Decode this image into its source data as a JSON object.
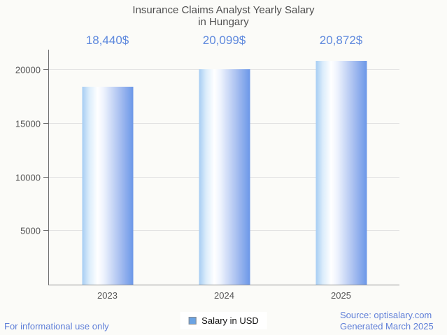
{
  "title": {
    "line1": "Insurance Claims Analyst Yearly Salary",
    "line2": "in Hungary"
  },
  "chart_data": {
    "type": "bar",
    "title": "Insurance Claims Analyst Yearly Salary in Hungary",
    "categories": [
      "2023",
      "2024",
      "2025"
    ],
    "series": [
      {
        "name": "Salary in USD",
        "values": [
          18440,
          20099,
          20872
        ]
      }
    ],
    "value_labels": [
      "18,440$",
      "20,099$",
      "20,872$"
    ],
    "xlabel": "",
    "ylabel": "",
    "yticks": [
      5000,
      10000,
      15000,
      20000
    ],
    "ylim": [
      0,
      21900
    ],
    "grid": true,
    "legend_position": "bottom"
  },
  "legend": {
    "label": "Salary in USD",
    "swatch_color": "#6ba3e3"
  },
  "footer": {
    "left": "For informational use only",
    "source": "Source: optisalary.com",
    "generated": "Generated March 2025"
  },
  "colors": {
    "background": "#fbfbf8",
    "title_text": "#4f4f4f",
    "axis_text": "#565656",
    "value_label_text": "#5d88dd",
    "footer_text": "#5f7fd8",
    "gridline": "#e3e3e3",
    "bar_gradient_left": "#a6cdf3",
    "bar_gradient_mid": "#ffffff",
    "bar_gradient_right": "#6b97e8"
  }
}
